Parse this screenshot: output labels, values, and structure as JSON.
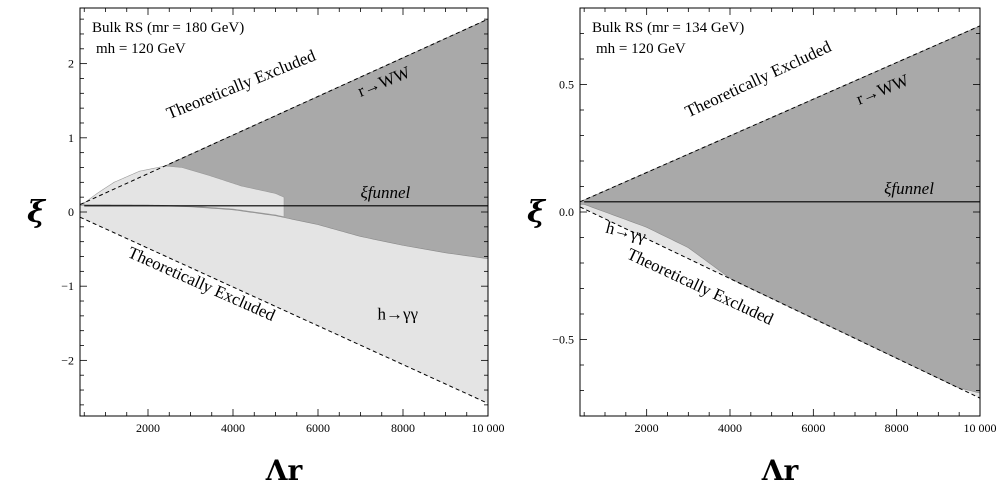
{
  "chart_data": [
    {
      "type": "area",
      "xlabel": "Λr",
      "ylabel": "ξ",
      "xlim": [
        400,
        10000
      ],
      "ylim": [
        -2.75,
        2.75
      ],
      "xticks": [
        2000,
        4000,
        6000,
        8000,
        10000
      ],
      "xtick_labels": [
        "2000",
        "4000",
        "6000",
        "8000",
        "10 000"
      ],
      "yticks": [
        -2,
        -1,
        0,
        1,
        2
      ],
      "ytick_labels": [
        "−2",
        "−1",
        "0",
        "1",
        "2"
      ],
      "info_line1": "Bulk RS (mr = 180 GeV)",
      "info_line2": "mh = 120 GeV",
      "funnel_label": "ξfunnel",
      "funnel_xi": 0.083,
      "upper_excluded_label": "Theoretically Excluded",
      "lower_excluded_label": "Theoretically Excluded",
      "region_dark_label": "r→WW",
      "region_light_label": "h→γγ",
      "upper_boundary": {
        "x": [
          400,
          10000
        ],
        "y": [
          0.1,
          2.6
        ]
      },
      "lower_boundary": {
        "x": [
          400,
          10000
        ],
        "y": [
          -0.07,
          -2.58
        ]
      },
      "rww_lower_edge": {
        "x": [
          500,
          2000,
          3000,
          4000,
          5000,
          6000,
          7000,
          8000,
          9000,
          10000
        ],
        "y": [
          0.09,
          0.085,
          0.07,
          0.03,
          -0.05,
          -0.17,
          -0.33,
          -0.45,
          -0.55,
          -0.63
        ]
      },
      "hgg_island_upper": {
        "x": [
          500,
          800,
          1200,
          1800,
          2400,
          2800,
          3400,
          4200,
          5000,
          5200
        ],
        "y": [
          0.12,
          0.25,
          0.4,
          0.55,
          0.62,
          0.6,
          0.5,
          0.35,
          0.25,
          0.2
        ]
      },
      "colors": {
        "dark": "#a9a9a9",
        "light": "#e4e4e4",
        "funnel": "#000000"
      }
    },
    {
      "type": "area",
      "xlabel": "Λr",
      "ylabel": "ξ",
      "xlim": [
        400,
        10000
      ],
      "ylim": [
        -0.8,
        0.8
      ],
      "xticks": [
        2000,
        4000,
        6000,
        8000,
        10000
      ],
      "xtick_labels": [
        "2000",
        "4000",
        "6000",
        "8000",
        "10 000"
      ],
      "yticks": [
        -0.5,
        0,
        0.5
      ],
      "ytick_labels": [
        "−0.5",
        "0.0",
        "0.5"
      ],
      "info_line1": "Bulk RS (mr = 134 GeV)",
      "info_line2": "mh = 120 GeV",
      "funnel_label": "ξfunnel",
      "funnel_xi": 0.04,
      "upper_excluded_label": "Theoretically Excluded",
      "lower_excluded_label": "Theoretically Excluded",
      "region_dark_label": "r→WW",
      "region_light_label": "h→γγ",
      "upper_boundary": {
        "x": [
          400,
          10000
        ],
        "y": [
          0.04,
          0.73
        ]
      },
      "lower_boundary": {
        "x": [
          400,
          10000
        ],
        "y": [
          0.02,
          -0.73
        ]
      },
      "rww_lower_edge": {
        "x": [
          500,
          1000,
          2000,
          3000,
          4000,
          5000,
          6000,
          7000,
          8000,
          9000,
          10000
        ],
        "y": [
          0.03,
          0.0,
          -0.06,
          -0.14,
          -0.26,
          -0.38,
          -0.48,
          -0.56,
          -0.62,
          -0.67,
          -0.71
        ]
      },
      "colors": {
        "dark": "#a9a9a9",
        "light": "#e4e4e4",
        "funnel": "#000000"
      }
    }
  ]
}
